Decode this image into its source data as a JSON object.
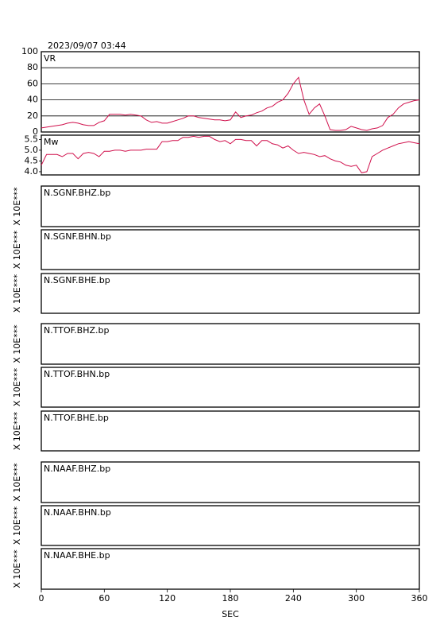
{
  "title": "2023/09/07  03:44",
  "chart_data": [
    {
      "type": "line",
      "label": "VR",
      "color": "#d0104c",
      "xlim": [
        0,
        360
      ],
      "ylim": [
        0,
        100
      ],
      "yticks": [
        0,
        20,
        40,
        60,
        80,
        100
      ],
      "grid": true,
      "x": [
        0,
        5,
        10,
        15,
        20,
        25,
        30,
        35,
        40,
        45,
        50,
        55,
        60,
        65,
        70,
        75,
        80,
        85,
        90,
        95,
        100,
        105,
        110,
        115,
        120,
        125,
        130,
        135,
        140,
        145,
        150,
        155,
        160,
        165,
        170,
        175,
        180,
        185,
        190,
        195,
        200,
        205,
        210,
        215,
        220,
        225,
        230,
        235,
        240,
        245,
        250,
        255,
        260,
        265,
        270,
        275,
        280,
        285,
        290,
        295,
        300,
        305,
        310,
        315,
        320,
        325,
        330,
        335,
        340,
        345,
        350,
        355,
        360
      ],
      "values": [
        5,
        6,
        7,
        8,
        9,
        11,
        12,
        11,
        9,
        8,
        8,
        12,
        14,
        22,
        22,
        22,
        21,
        22,
        21,
        20,
        15,
        12,
        13,
        11,
        11,
        13,
        15,
        17,
        20,
        20,
        18,
        17,
        16,
        15,
        15,
        14,
        15,
        25,
        18,
        20,
        21,
        24,
        26,
        30,
        32,
        37,
        40,
        48,
        60,
        68,
        40,
        22,
        30,
        35,
        20,
        3,
        2,
        2,
        3,
        7,
        5,
        3,
        2,
        4,
        5,
        8,
        18,
        22,
        30,
        35,
        37,
        39,
        40
      ]
    },
    {
      "type": "line",
      "label": "Mw",
      "color": "#d0104c",
      "xlim": [
        0,
        360
      ],
      "ylim": [
        3.85,
        5.7
      ],
      "yticks": [
        {
          "value": 4,
          "label": "4.0"
        },
        4.5,
        {
          "value": 5,
          "label": "5.0"
        },
        5.5
      ],
      "grid": false,
      "x": [
        0,
        5,
        10,
        15,
        20,
        25,
        30,
        35,
        40,
        45,
        50,
        55,
        60,
        65,
        70,
        75,
        80,
        85,
        90,
        95,
        100,
        105,
        110,
        115,
        120,
        125,
        130,
        135,
        140,
        145,
        150,
        155,
        160,
        165,
        170,
        175,
        180,
        185,
        190,
        195,
        200,
        205,
        210,
        215,
        220,
        225,
        230,
        235,
        240,
        245,
        250,
        255,
        260,
        265,
        270,
        275,
        280,
        285,
        290,
        295,
        300,
        305,
        310,
        315,
        320,
        325,
        330,
        335,
        340,
        345,
        350,
        355,
        360
      ],
      "values": [
        4.3,
        4.8,
        4.8,
        4.8,
        4.7,
        4.85,
        4.85,
        4.6,
        4.85,
        4.9,
        4.85,
        4.7,
        4.95,
        4.95,
        5.0,
        5.0,
        4.95,
        5.0,
        5.0,
        5.0,
        5.05,
        5.05,
        5.05,
        5.4,
        5.4,
        5.45,
        5.45,
        5.6,
        5.6,
        5.65,
        5.6,
        5.65,
        5.65,
        5.5,
        5.4,
        5.45,
        5.3,
        5.5,
        5.5,
        5.45,
        5.45,
        5.2,
        5.45,
        5.45,
        5.3,
        5.25,
        5.1,
        5.2,
        5.0,
        4.85,
        4.9,
        4.85,
        4.8,
        4.7,
        4.75,
        4.6,
        4.5,
        4.45,
        4.3,
        4.25,
        4.3,
        3.95,
        4.0,
        4.7,
        4.85,
        5.0,
        5.1,
        5.2,
        5.3,
        5.35,
        5.4,
        5.35,
        5.3
      ]
    },
    {
      "type": "waveform",
      "label": "N.SGNF.BHZ.bp",
      "ylabel": "X 10E***",
      "xlim": [
        0,
        360
      ]
    },
    {
      "type": "waveform",
      "label": "N.SGNF.BHN.bp",
      "ylabel": "X 10E***",
      "xlim": [
        0,
        360
      ]
    },
    {
      "type": "waveform",
      "label": "N.SGNF.BHE.bp",
      "ylabel": "X 10E***",
      "xlim": [
        0,
        360
      ]
    },
    {
      "type": "waveform",
      "label": "N.TTOF.BHZ.bp",
      "ylabel": "X 10E***",
      "xlim": [
        0,
        360
      ]
    },
    {
      "type": "waveform",
      "label": "N.TTOF.BHN.bp",
      "ylabel": "X 10E***",
      "xlim": [
        0,
        360
      ]
    },
    {
      "type": "waveform",
      "label": "N.TTOF.BHE.bp",
      "ylabel": "X 10E***",
      "xlim": [
        0,
        360
      ]
    },
    {
      "type": "waveform",
      "label": "N.NAAF.BHZ.bp",
      "ylabel": "X 10E***",
      "xlim": [
        0,
        360
      ]
    },
    {
      "type": "waveform",
      "label": "N.NAAF.BHN.bp",
      "ylabel": "X 10E***",
      "xlim": [
        0,
        360
      ]
    },
    {
      "type": "waveform",
      "label": "N.NAAF.BHE.bp",
      "ylabel": "X 10E***",
      "xlim": [
        0,
        360
      ],
      "xticks": [
        0,
        60,
        120,
        180,
        240,
        300,
        360
      ],
      "xlabel": "SEC"
    }
  ]
}
